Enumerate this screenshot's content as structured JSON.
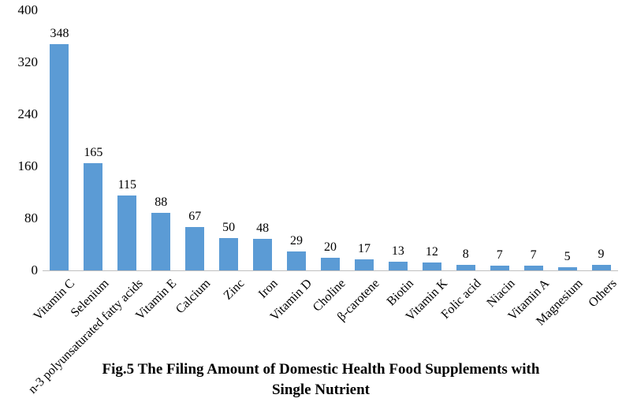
{
  "figure": {
    "caption_line1": "Fig.5 The Filing Amount of Domestic Health Food Supplements with",
    "caption_line2": "Single Nutrient"
  },
  "chart_data": {
    "type": "bar",
    "title": "Fig.5 The Filing Amount of Domestic Health Food Supplements with Single Nutrient",
    "categories": [
      "Vitamin C",
      "Selenium",
      "n-3 polyunsaturated fatty acids",
      "Vitamin E",
      "Calcium",
      "Zinc",
      "Iron",
      "Vitamin D",
      "Choline",
      "β-carotene",
      "Biotin",
      "Vitamin K",
      "Folic acid",
      "Niacin",
      "Vitamin A",
      "Magnesium",
      "Others"
    ],
    "values": [
      348,
      165,
      115,
      88,
      67,
      50,
      48,
      29,
      20,
      17,
      13,
      12,
      8,
      7,
      7,
      5,
      9
    ],
    "xlabel": "",
    "ylabel": "",
    "ylim": [
      0,
      400
    ],
    "yticks": [
      0,
      80,
      160,
      240,
      320,
      400
    ],
    "grid": false,
    "legend_position": "none",
    "data_labels": true,
    "x_label_rotation_deg": 45,
    "bar_color": "#5B9BD5",
    "axis_line_color": "#BFBFBF",
    "text_color": "#000000"
  }
}
